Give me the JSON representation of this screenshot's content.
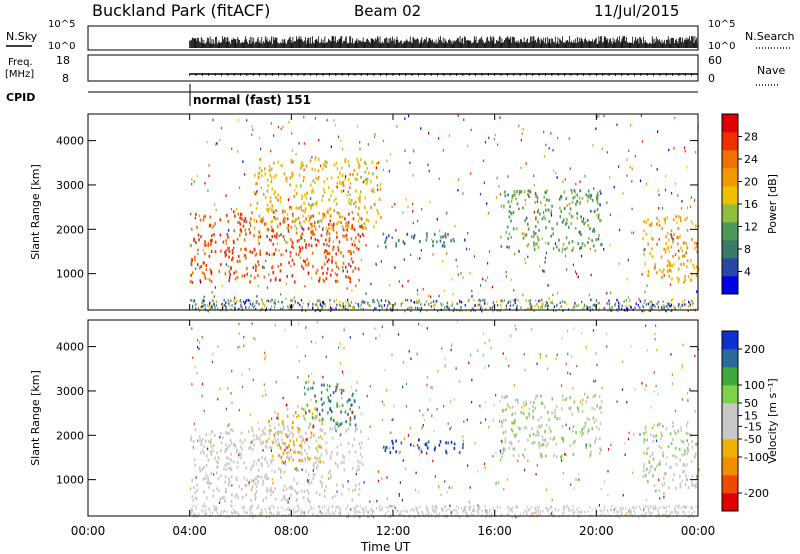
{
  "header": {
    "title": "Buckland Park (fitACF)",
    "beam": "Beam 02",
    "date": "11/Jul/2015"
  },
  "top_panels": {
    "nsky": {
      "label": "N.Sky",
      "left_ticks": [
        "10^5",
        "10^0"
      ],
      "right_ticks": [
        "10^5",
        "10^0"
      ],
      "right_label": "N.Search"
    },
    "freq": {
      "label_line1": "Freq.",
      "label_line2": "[MHz]",
      "left_ticks": [
        "18",
        "8"
      ],
      "right_ticks": [
        "60",
        "0"
      ],
      "right_label": "Nave"
    },
    "cpid": {
      "label": "CPID",
      "text": "normal (fast) 151",
      "start": "04:00"
    }
  },
  "x_axis": {
    "label": "Time UT",
    "ticks": [
      "00:00",
      "04:00",
      "08:00",
      "12:00",
      "16:00",
      "20:00",
      "00:00"
    ]
  },
  "colors": {
    "power_scale": [
      "#0000e6",
      "#2848a8",
      "#3a7a6a",
      "#4b9a5a",
      "#8fbf3c",
      "#f0c000",
      "#f09a00",
      "#f07000",
      "#f03000",
      "#e00000"
    ],
    "velocity_scale": [
      "#e00000",
      "#f04a00",
      "#f09000",
      "#f0b000",
      "#c8c8c8",
      "#c8c8c8",
      "#7fd04a",
      "#3fa83a",
      "#2a6a9a",
      "#1030d0"
    ]
  },
  "chart_data": [
    {
      "type": "heatmap",
      "title": "Power",
      "xlabel": "",
      "ylabel": "Slant Range [km]",
      "xlim": [
        0,
        24
      ],
      "ylim": [
        180,
        4600
      ],
      "y_ticks": [
        "4000",
        "3000",
        "2000",
        "1000"
      ],
      "y_tick_values": [
        4000,
        3000,
        2000,
        1000
      ],
      "colorbar": {
        "label": "Power [dB]",
        "range": [
          0,
          32
        ],
        "ticks": [
          "28",
          "24",
          "20",
          "16",
          "12",
          "8",
          "4"
        ]
      },
      "regions": [
        {
          "t0": 4.0,
          "t1": 10.8,
          "r0": 800,
          "r1": 2400,
          "value": 26
        },
        {
          "t0": 6.5,
          "t1": 11.5,
          "r0": 2000,
          "r1": 3600,
          "value": 18
        },
        {
          "t0": 11.5,
          "t1": 14.8,
          "r0": 1600,
          "r1": 1900,
          "value": 8
        },
        {
          "t0": 16.2,
          "t1": 20.2,
          "r0": 1500,
          "r1": 2900,
          "value": 12
        },
        {
          "t0": 21.8,
          "t1": 24.0,
          "r0": 800,
          "r1": 2300,
          "value": 20
        }
      ]
    },
    {
      "type": "heatmap",
      "title": "Velocity",
      "xlabel": "Time UT",
      "ylabel": "Slant Range [km]",
      "xlim": [
        0,
        24
      ],
      "ylim": [
        180,
        4600
      ],
      "y_ticks": [
        "4000",
        "3000",
        "2000",
        "1000"
      ],
      "y_tick_values": [
        4000,
        3000,
        2000,
        1000
      ],
      "colorbar": {
        "label": "Velocity [m s⁻¹]",
        "range": [
          -250,
          250
        ],
        "ticks": [
          "200",
          "100",
          "50",
          "15",
          "-15",
          "-50",
          "-100",
          "-200"
        ]
      },
      "regions": [
        {
          "t0": 4.0,
          "t1": 10.8,
          "r0": 500,
          "r1": 2200,
          "value": 0
        },
        {
          "t0": 7.0,
          "t1": 9.2,
          "r0": 1400,
          "r1": 2600,
          "value": -70
        },
        {
          "t0": 8.5,
          "t1": 10.5,
          "r0": 2200,
          "r1": 3200,
          "value": 150
        },
        {
          "t0": 11.5,
          "t1": 14.8,
          "r0": 1600,
          "r1": 1900,
          "value": 220
        },
        {
          "t0": 16.2,
          "t1": 20.2,
          "r0": 1500,
          "r1": 2900,
          "value": 40
        },
        {
          "t0": 21.8,
          "t1": 24.0,
          "r0": 800,
          "r1": 2300,
          "value": 30
        }
      ]
    }
  ]
}
